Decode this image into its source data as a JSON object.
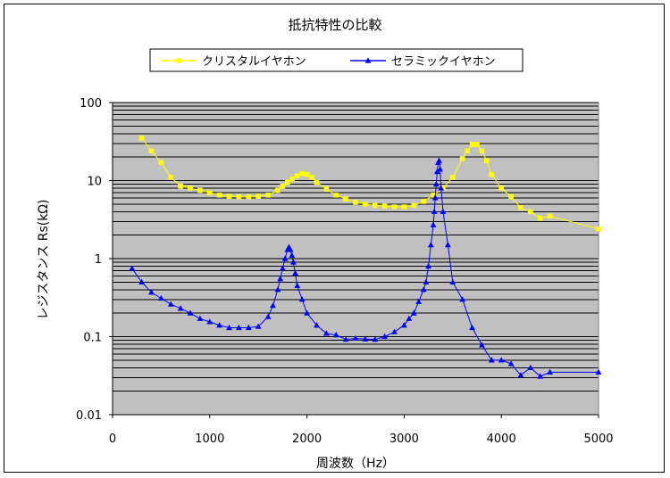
{
  "chart_data": {
    "type": "line",
    "title": "抵抗特性の比較",
    "xlabel": "周波数（Hz）",
    "ylabel": "レジスタンス Rs(kΩ)",
    "x_scale": "linear",
    "y_scale": "log",
    "xlim": [
      0,
      5000
    ],
    "ylim": [
      0.01,
      100
    ],
    "x_ticks": [
      "0",
      "1000",
      "2000",
      "3000",
      "4000",
      "5000"
    ],
    "y_ticks": [
      "0.01",
      "0.1",
      "1",
      "10",
      "100"
    ],
    "grid": true,
    "legend_position": "top",
    "plot_background": "#c0c0c0",
    "series": [
      {
        "name": "クリスタルイヤホン",
        "color": "#ffff00",
        "marker": "square",
        "points": [
          [
            300,
            35
          ],
          [
            400,
            24
          ],
          [
            500,
            17
          ],
          [
            600,
            11
          ],
          [
            700,
            8.5
          ],
          [
            800,
            8.0
          ],
          [
            900,
            7.5
          ],
          [
            1000,
            7.0
          ],
          [
            1100,
            6.5
          ],
          [
            1200,
            6.3
          ],
          [
            1300,
            6.2
          ],
          [
            1400,
            6.2
          ],
          [
            1500,
            6.3
          ],
          [
            1600,
            6.5
          ],
          [
            1700,
            7.5
          ],
          [
            1750,
            8.5
          ],
          [
            1800,
            9.5
          ],
          [
            1850,
            10.5
          ],
          [
            1900,
            11.5
          ],
          [
            1950,
            12.3
          ],
          [
            2000,
            12.0
          ],
          [
            2050,
            11.0
          ],
          [
            2100,
            9.5
          ],
          [
            2200,
            7.8
          ],
          [
            2300,
            6.5
          ],
          [
            2400,
            5.8
          ],
          [
            2500,
            5.3
          ],
          [
            2600,
            5.0
          ],
          [
            2700,
            4.8
          ],
          [
            2800,
            4.7
          ],
          [
            2900,
            4.6
          ],
          [
            3000,
            4.6
          ],
          [
            3100,
            4.8
          ],
          [
            3200,
            5.4
          ],
          [
            3300,
            6.5
          ],
          [
            3400,
            8.0
          ],
          [
            3500,
            11.0
          ],
          [
            3600,
            19.0
          ],
          [
            3650,
            24.0
          ],
          [
            3700,
            29.0
          ],
          [
            3750,
            29.0
          ],
          [
            3800,
            24.0
          ],
          [
            3850,
            18.0
          ],
          [
            3900,
            12.0
          ],
          [
            4000,
            8.0
          ],
          [
            4100,
            6.2
          ],
          [
            4200,
            4.5
          ],
          [
            4300,
            4.0
          ],
          [
            4400,
            3.3
          ],
          [
            4500,
            3.5
          ],
          [
            5000,
            2.4
          ]
        ]
      },
      {
        "name": "セラミックイヤホン",
        "color": "#0000ff",
        "marker": "triangle",
        "points": [
          [
            200,
            0.75
          ],
          [
            300,
            0.5
          ],
          [
            400,
            0.37
          ],
          [
            500,
            0.31
          ],
          [
            600,
            0.26
          ],
          [
            700,
            0.23
          ],
          [
            800,
            0.2
          ],
          [
            900,
            0.17
          ],
          [
            1000,
            0.155
          ],
          [
            1100,
            0.14
          ],
          [
            1200,
            0.13
          ],
          [
            1300,
            0.13
          ],
          [
            1400,
            0.13
          ],
          [
            1500,
            0.135
          ],
          [
            1600,
            0.18
          ],
          [
            1650,
            0.25
          ],
          [
            1700,
            0.4
          ],
          [
            1725,
            0.55
          ],
          [
            1750,
            0.75
          ],
          [
            1775,
            1.0
          ],
          [
            1800,
            1.3
          ],
          [
            1815,
            1.4
          ],
          [
            1830,
            1.3
          ],
          [
            1845,
            1.1
          ],
          [
            1860,
            0.9
          ],
          [
            1880,
            0.65
          ],
          [
            1900,
            0.45
          ],
          [
            1950,
            0.3
          ],
          [
            2000,
            0.2
          ],
          [
            2100,
            0.14
          ],
          [
            2200,
            0.11
          ],
          [
            2300,
            0.105
          ],
          [
            2400,
            0.092
          ],
          [
            2500,
            0.095
          ],
          [
            2600,
            0.093
          ],
          [
            2700,
            0.092
          ],
          [
            2800,
            0.1
          ],
          [
            2900,
            0.115
          ],
          [
            3000,
            0.14
          ],
          [
            3050,
            0.17
          ],
          [
            3100,
            0.2
          ],
          [
            3150,
            0.28
          ],
          [
            3200,
            0.4
          ],
          [
            3225,
            0.5
          ],
          [
            3250,
            0.8
          ],
          [
            3275,
            1.5
          ],
          [
            3300,
            2.7
          ],
          [
            3310,
            4.0
          ],
          [
            3320,
            6.0
          ],
          [
            3330,
            9.0
          ],
          [
            3340,
            13.0
          ],
          [
            3350,
            17.0
          ],
          [
            3360,
            18.0
          ],
          [
            3370,
            14.0
          ],
          [
            3380,
            8.0
          ],
          [
            3400,
            4.0
          ],
          [
            3450,
            1.5
          ],
          [
            3500,
            0.5
          ],
          [
            3600,
            0.3
          ],
          [
            3700,
            0.13
          ],
          [
            3800,
            0.078
          ],
          [
            3900,
            0.05
          ],
          [
            4000,
            0.05
          ],
          [
            4100,
            0.045
          ],
          [
            4200,
            0.032
          ],
          [
            4300,
            0.04
          ],
          [
            4400,
            0.031
          ],
          [
            4500,
            0.035
          ],
          [
            5000,
            0.035
          ]
        ]
      }
    ]
  }
}
